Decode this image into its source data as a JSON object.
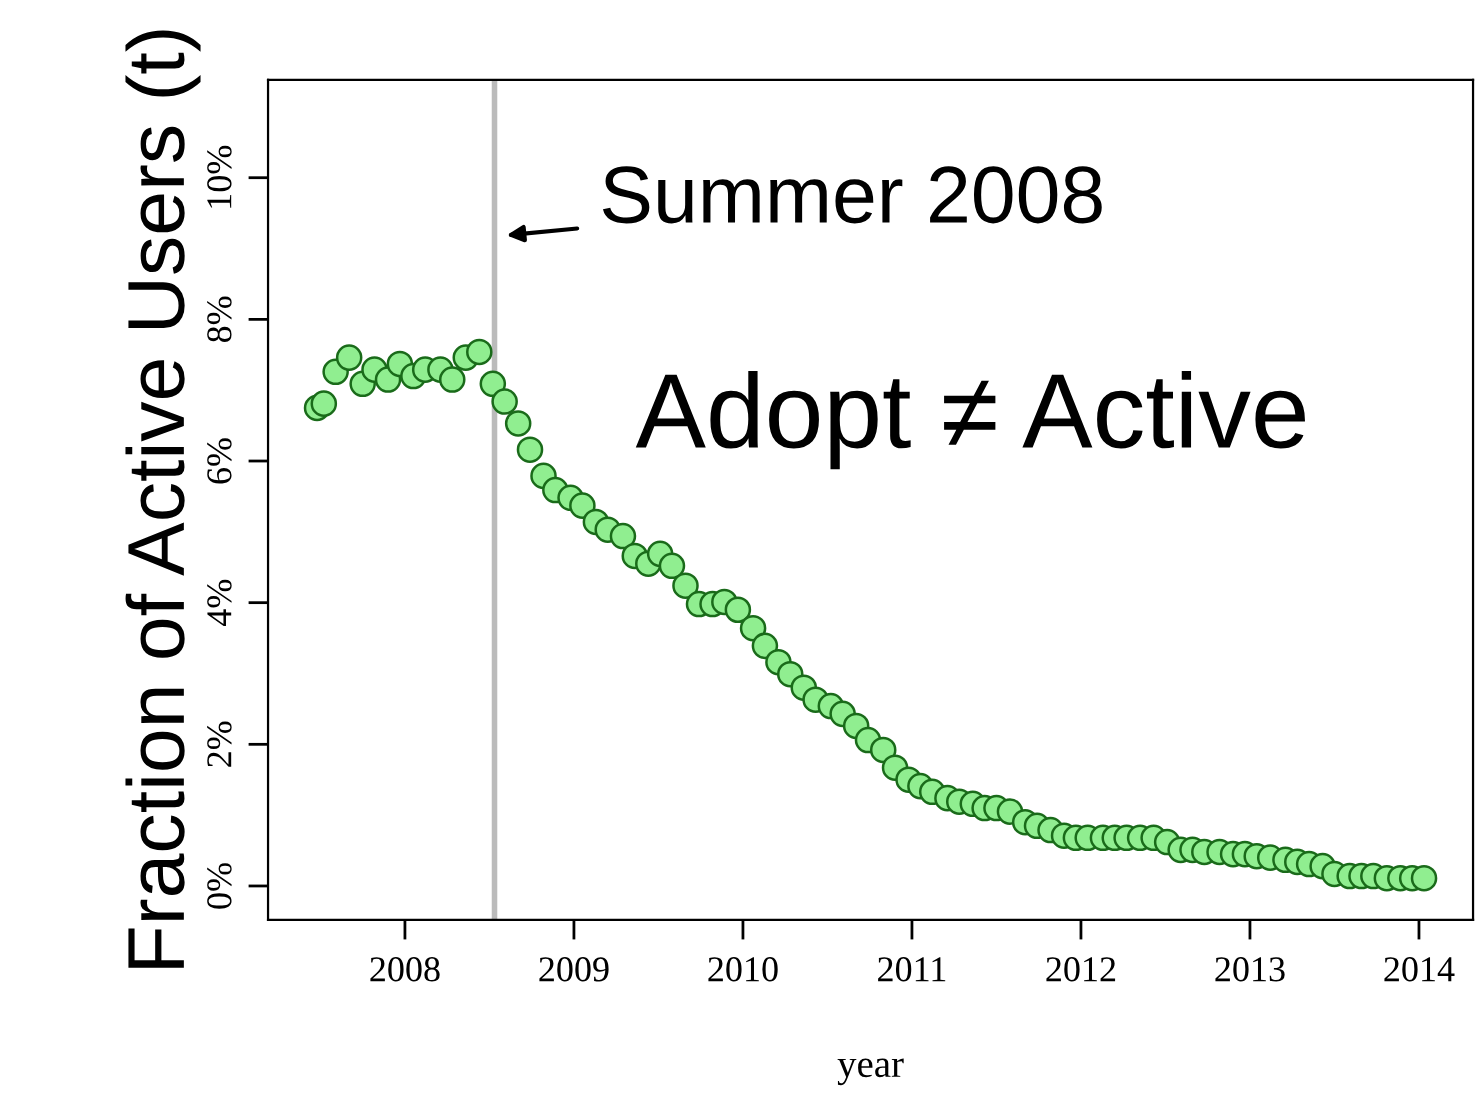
{
  "chart_data": {
    "type": "scatter",
    "xlabel": "year",
    "ylabel": "Fraction of Active Users (t)",
    "xlim": [
      2007.19,
      2014.32
    ],
    "ylim": [
      -0.48,
      11.38
    ],
    "xticks": [
      2008,
      2009,
      2010,
      2011,
      2012,
      2013,
      2014
    ],
    "yticks": [
      {
        "value": 0,
        "label": "0%"
      },
      {
        "value": 2,
        "label": "2%"
      },
      {
        "value": 4,
        "label": "4%"
      },
      {
        "value": 6,
        "label": "6%"
      },
      {
        "value": 8,
        "label": "8%"
      },
      {
        "value": 10,
        "label": "10%"
      }
    ],
    "grid": false,
    "marker": "circle",
    "ref_lines": [
      {
        "axis": "x",
        "value": 2008.53,
        "label": "Summer 2008",
        "color": "#bbbbbb"
      }
    ],
    "annotations": [
      "Adopt ≠ Active"
    ],
    "series": [
      {
        "color": "#90ee90",
        "x": [
          2007.48,
          2007.52,
          2007.59,
          2007.67,
          2007.75,
          2007.82,
          2007.9,
          2007.97,
          2008.05,
          2008.12,
          2008.21,
          2008.28,
          2008.36,
          2008.44,
          2008.52,
          2008.59,
          2008.67,
          2008.74,
          2008.82,
          2008.89,
          2008.98,
          2009.05,
          2009.13,
          2009.2,
          2009.29,
          2009.36,
          2009.44,
          2009.51,
          2009.58,
          2009.66,
          2009.74,
          2009.82,
          2009.89,
          2009.97,
          2010.06,
          2010.13,
          2010.21,
          2010.28,
          2010.36,
          2010.43,
          2010.52,
          2010.59,
          2010.67,
          2010.74,
          2010.83,
          2010.9,
          2010.98,
          2011.05,
          2011.12,
          2011.21,
          2011.28,
          2011.36,
          2011.43,
          2011.5,
          2011.58,
          2011.67,
          2011.74,
          2011.82,
          2011.9,
          2011.97,
          2012.04,
          2012.13,
          2012.2,
          2012.27,
          2012.35,
          2012.43,
          2012.51,
          2012.59,
          2012.66,
          2012.73,
          2012.82,
          2012.9,
          2012.97,
          2013.04,
          2013.12,
          2013.21,
          2013.28,
          2013.35,
          2013.43,
          2013.5,
          2013.59,
          2013.66,
          2013.73,
          2013.81,
          2013.89,
          2013.96,
          2014.03
        ],
        "values": [
          6.75,
          6.81,
          7.26,
          7.46,
          7.09,
          7.29,
          7.15,
          7.37,
          7.2,
          7.29,
          7.29,
          7.15,
          7.46,
          7.54,
          7.09,
          6.84,
          6.53,
          6.16,
          5.79,
          5.59,
          5.48,
          5.37,
          5.14,
          5.03,
          4.94,
          4.66,
          4.55,
          4.69,
          4.52,
          4.24,
          3.98,
          3.98,
          4.01,
          3.9,
          3.64,
          3.39,
          3.16,
          2.99,
          2.8,
          2.63,
          2.54,
          2.43,
          2.26,
          2.06,
          1.92,
          1.67,
          1.5,
          1.41,
          1.33,
          1.24,
          1.19,
          1.16,
          1.1,
          1.1,
          1.05,
          0.9,
          0.85,
          0.79,
          0.71,
          0.68,
          0.68,
          0.68,
          0.68,
          0.68,
          0.68,
          0.68,
          0.62,
          0.51,
          0.51,
          0.48,
          0.48,
          0.45,
          0.45,
          0.42,
          0.4,
          0.37,
          0.34,
          0.31,
          0.28,
          0.17,
          0.14,
          0.14,
          0.14,
          0.11,
          0.11,
          0.11,
          0.11
        ]
      }
    ]
  }
}
